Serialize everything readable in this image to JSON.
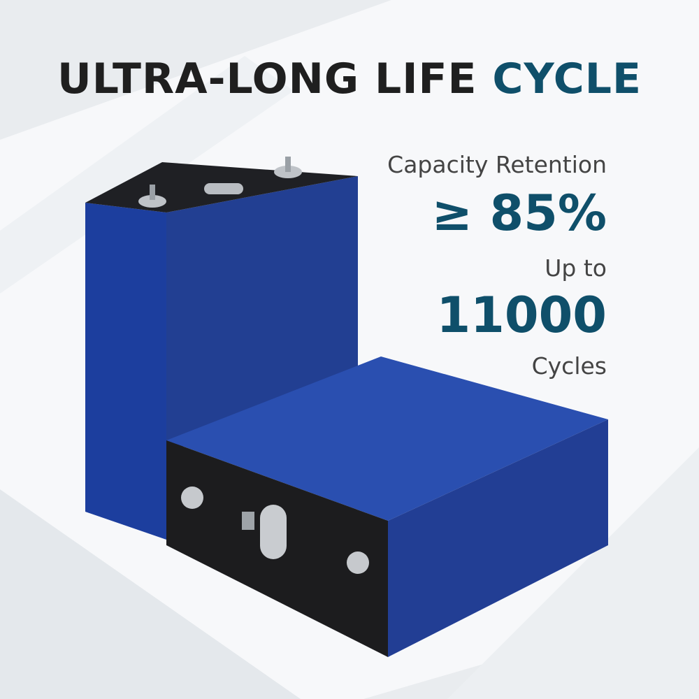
{
  "title": {
    "main": "ULTRA-LONG LIFE ",
    "accent": "CYCLE"
  },
  "specs": {
    "retention_label": "Capacity Retention",
    "retention_value": "≥ 85%",
    "cycles_prefix": "Up to",
    "cycles_value": "11000",
    "cycles_suffix": "Cycles"
  },
  "colors": {
    "title": "#1f1f1f",
    "accent": "#0f4f6a",
    "battery_blue": "#1e3fa0",
    "terminal_face": "#1c1c1e"
  }
}
